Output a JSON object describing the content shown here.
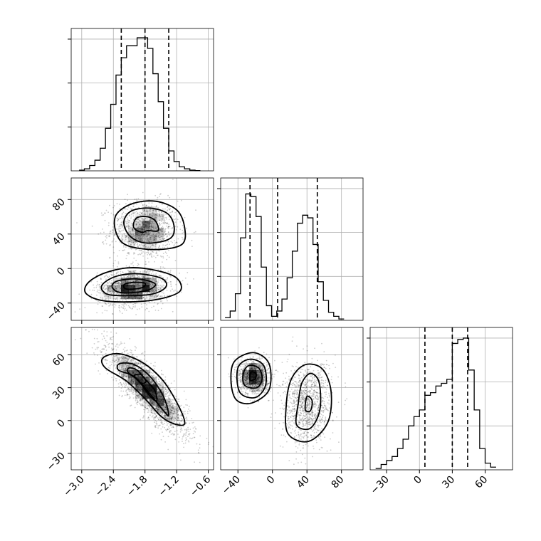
{
  "chart_data": {
    "type": "corner",
    "title": "",
    "parameters": [
      {
        "xticks": [
          "−3.0",
          "−2.4",
          "−1.8",
          "−1.2",
          "−0.6"
        ],
        "xtick_values": [
          -3.0,
          -2.4,
          -1.8,
          -1.2,
          -0.6
        ],
        "range": [
          -3.2,
          -0.5
        ]
      },
      {
        "xticks": [
          "−40",
          "0",
          "40",
          "80"
        ],
        "xtick_values": [
          -40,
          0,
          40,
          80
        ],
        "yticks": [
          "−40",
          "0",
          "40",
          "80"
        ],
        "ytick_values": [
          -40,
          0,
          40,
          80
        ],
        "range": [
          -60,
          105
        ]
      },
      {
        "xticks": [
          "−30",
          "0",
          "30",
          "60"
        ],
        "xtick_values": [
          -30,
          0,
          30,
          60
        ],
        "yticks": [
          "−30",
          "0",
          "30",
          "60"
        ],
        "ytick_values": [
          -30,
          0,
          30,
          60
        ],
        "range": [
          -45,
          85
        ]
      }
    ],
    "histograms": [
      {
        "param": 0,
        "bin_edges": [
          -3.05,
          -2.95,
          -2.85,
          -2.75,
          -2.65,
          -2.55,
          -2.45,
          -2.35,
          -2.25,
          -2.15,
          -2.05,
          -1.95,
          -1.85,
          -1.75,
          -1.65,
          -1.55,
          -1.45,
          -1.35,
          -1.25,
          -1.15,
          -1.05,
          -0.95,
          -0.85,
          -0.75
        ],
        "counts": [
          0.005,
          0.015,
          0.04,
          0.08,
          0.17,
          0.32,
          0.5,
          0.72,
          0.85,
          0.94,
          0.94,
          1.0,
          1.0,
          0.92,
          0.73,
          0.52,
          0.32,
          0.15,
          0.07,
          0.03,
          0.015,
          0.005,
          0.002
        ],
        "quantiles": [
          -2.25,
          -1.8,
          -1.35
        ]
      },
      {
        "param": 1,
        "bin_edges": [
          -55,
          -49,
          -43,
          -37,
          -31,
          -25,
          -19,
          -13,
          -7,
          -1,
          5,
          11,
          17,
          23,
          29,
          35,
          41,
          47,
          53,
          59,
          65,
          71,
          77,
          83
        ],
        "counts": [
          0.02,
          0.07,
          0.2,
          0.62,
          0.95,
          0.93,
          0.78,
          0.4,
          0.11,
          0.03,
          0.07,
          0.16,
          0.32,
          0.52,
          0.73,
          0.79,
          0.77,
          0.57,
          0.29,
          0.15,
          0.06,
          0.03,
          0.01
        ],
        "quantiles": [
          -26,
          6,
          52
        ]
      },
      {
        "param": 2,
        "bin_edges": [
          -40,
          -35,
          -30,
          -25,
          -20,
          -15,
          -10,
          -5,
          0,
          5,
          10,
          15,
          20,
          25,
          30,
          35,
          40,
          45,
          50,
          55,
          60,
          65,
          70
        ],
        "counts": [
          0.01,
          0.04,
          0.07,
          0.1,
          0.16,
          0.23,
          0.33,
          0.4,
          0.45,
          0.56,
          0.58,
          0.63,
          0.65,
          0.68,
          0.95,
          0.98,
          0.99,
          0.75,
          0.45,
          0.16,
          0.05,
          0.02
        ],
        "quantiles": [
          5,
          30,
          44
        ]
      }
    ],
    "scatter_panels": [
      {
        "x_param": 0,
        "y_param": 1,
        "clusters": [
          {
            "center": [
              -1.8,
              45
            ],
            "spread": [
              0.32,
              17
            ],
            "corr": 0.0,
            "n": 1100
          },
          {
            "center": [
              -2.0,
              -22
            ],
            "spread": [
              0.35,
              11
            ],
            "corr": 0.15,
            "n": 1100
          }
        ],
        "contours": [
          [
            [
              -1.75,
              44
            ],
            [
              -1.55,
              44
            ],
            [
              -1.6,
              55
            ],
            [
              -1.75,
              60
            ],
            [
              -1.95,
              59
            ],
            [
              -2.02,
              51
            ],
            [
              -1.98,
              45
            ],
            [
              -1.85,
              42
            ]
          ],
          [
            [
              -1.6,
              30
            ],
            [
              -1.3,
              36
            ],
            [
              -1.25,
              50
            ],
            [
              -1.38,
              64
            ],
            [
              -1.7,
              70
            ],
            [
              -2.05,
              67
            ],
            [
              -2.2,
              55
            ],
            [
              -2.12,
              40
            ],
            [
              -1.9,
              31
            ]
          ],
          [
            [
              -1.6,
              22
            ],
            [
              -1.1,
              28
            ],
            [
              -1.05,
              48
            ],
            [
              -1.2,
              68
            ],
            [
              -1.6,
              78
            ],
            [
              -2.05,
              75
            ],
            [
              -2.35,
              62
            ],
            [
              -2.35,
              42
            ],
            [
              -2.15,
              27
            ]
          ],
          [
            [
              -2.1,
              -24
            ],
            [
              -1.85,
              -22
            ],
            [
              -1.8,
              -17
            ],
            [
              -2.0,
              -16
            ],
            [
              -2.18,
              -18
            ],
            [
              -2.2,
              -22
            ]
          ],
          [
            [
              -2.25,
              -28
            ],
            [
              -1.8,
              -26
            ],
            [
              -1.6,
              -19
            ],
            [
              -1.75,
              -14
            ],
            [
              -2.05,
              -12
            ],
            [
              -2.35,
              -15
            ],
            [
              -2.42,
              -22
            ]
          ],
          [
            [
              -2.4,
              -31
            ],
            [
              -1.7,
              -30
            ],
            [
              -1.4,
              -21
            ],
            [
              -1.5,
              -11
            ],
            [
              -1.95,
              -6
            ],
            [
              -2.35,
              -9
            ],
            [
              -2.6,
              -18
            ],
            [
              -2.6,
              -26
            ]
          ],
          [
            [
              -2.5,
              -38
            ],
            [
              -1.7,
              -37
            ],
            [
              -1.15,
              -27
            ],
            [
              -1.2,
              -11
            ],
            [
              -1.6,
              -2
            ],
            [
              -2.1,
              1
            ],
            [
              -2.6,
              -6
            ],
            [
              -2.9,
              -18
            ],
            [
              -2.9,
              -30
            ]
          ]
        ]
      },
      {
        "x_param": 0,
        "y_param": 2,
        "clusters": [
          {
            "center": [
              -1.75,
              28
            ],
            "spread": [
              0.38,
              20
            ],
            "corr": -0.85,
            "n": 2200
          }
        ],
        "contours": [
          [
            [
              -2.0,
              41
            ],
            [
              -1.92,
              36
            ],
            [
              -1.84,
              34
            ],
            [
              -1.78,
              36
            ],
            [
              -1.88,
              42
            ]
          ],
          [
            [
              -2.12,
              44
            ],
            [
              -1.92,
              36
            ],
            [
              -1.7,
              22
            ],
            [
              -1.58,
              18
            ],
            [
              -1.62,
              28
            ],
            [
              -1.8,
              38
            ],
            [
              -1.95,
              46
            ],
            [
              -2.1,
              48
            ]
          ],
          [
            [
              -2.3,
              46
            ],
            [
              -2.0,
              40
            ],
            [
              -1.7,
              24
            ],
            [
              -1.45,
              9
            ],
            [
              -1.35,
              5
            ],
            [
              -1.45,
              22
            ],
            [
              -1.7,
              40
            ],
            [
              -2.0,
              51
            ],
            [
              -2.28,
              52
            ]
          ],
          [
            [
              -2.55,
              48
            ],
            [
              -2.15,
              36
            ],
            [
              -1.8,
              20
            ],
            [
              -1.5,
              4
            ],
            [
              -1.25,
              -3
            ],
            [
              -1.05,
              -3
            ],
            [
              -1.15,
              12
            ],
            [
              -1.45,
              36
            ],
            [
              -1.85,
              53
            ],
            [
              -2.3,
              61
            ],
            [
              -2.6,
              57
            ]
          ]
        ]
      },
      {
        "x_param": 1,
        "y_param": 2,
        "clusters": [
          {
            "center": [
              -22,
              40
            ],
            "spread": [
              9,
              8
            ],
            "corr": 0.0,
            "n": 1100
          },
          {
            "center": [
              40,
              15
            ],
            "spread": [
              14,
              19
            ],
            "corr": 0.1,
            "n": 1100
          }
        ],
        "contours": [
          [
            [
              -26,
              37
            ],
            [
              -20,
              38
            ],
            [
              -19,
              43
            ],
            [
              -25,
              44
            ]
          ],
          [
            [
              -32,
              32
            ],
            [
              -18,
              30
            ],
            [
              -12,
              38
            ],
            [
              -16,
              48
            ],
            [
              -28,
              50
            ],
            [
              -34,
              42
            ]
          ],
          [
            [
              -38,
              26
            ],
            [
              -20,
              21
            ],
            [
              -8,
              32
            ],
            [
              -10,
              50
            ],
            [
              -26,
              56
            ],
            [
              -40,
              48
            ]
          ],
          [
            [
              -42,
              19
            ],
            [
              -24,
              16
            ],
            [
              -4,
              28
            ],
            [
              -4,
              52
            ],
            [
              -22,
              62
            ],
            [
              -44,
              54
            ],
            [
              -48,
              36
            ]
          ],
          [
            [
              38,
              10
            ],
            [
              44,
              9
            ],
            [
              46,
              18
            ],
            [
              40,
              22
            ]
          ],
          [
            [
              28,
              -4
            ],
            [
              44,
              -7
            ],
            [
              55,
              10
            ],
            [
              54,
              35
            ],
            [
              44,
              43
            ],
            [
              34,
              34
            ],
            [
              30,
              16
            ]
          ],
          [
            [
              18,
              -12
            ],
            [
              42,
              -19
            ],
            [
              64,
              -2
            ],
            [
              68,
              26
            ],
            [
              58,
              47
            ],
            [
              38,
              51
            ],
            [
              22,
              38
            ],
            [
              16,
              14
            ]
          ]
        ]
      }
    ]
  }
}
